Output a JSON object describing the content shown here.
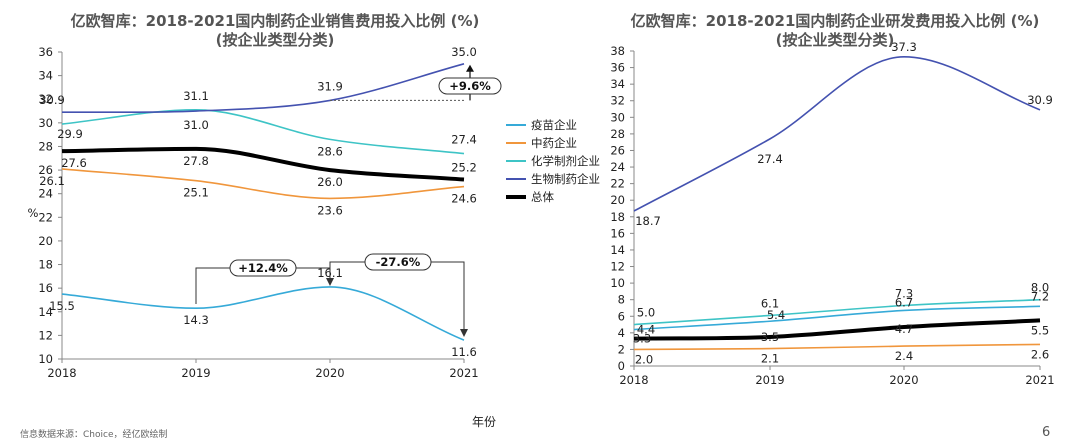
{
  "chart_data": [
    {
      "type": "line",
      "title": "亿欧智库：2018-2021国内制药企业销售费用投入比例 (%)",
      "subtitle": "(按企业类型分类)",
      "ylabel": "%",
      "xlabel": "年份",
      "categories": [
        "2018",
        "2019",
        "2020",
        "2021"
      ],
      "ylim": [
        10,
        36
      ],
      "yticks": [
        "10",
        "12",
        "14",
        "16",
        "18",
        "20",
        "22",
        "24",
        "26",
        "28",
        "30",
        "32",
        "34",
        "36"
      ],
      "series": [
        {
          "name": "疫苗企业",
          "color": "#36aad8",
          "values": [
            15.5,
            14.3,
            16.1,
            11.6
          ],
          "labels": [
            "15.5",
            "14.3",
            "16.1",
            "11.6"
          ]
        },
        {
          "name": "中药企业",
          "color": "#f0963c",
          "values": [
            26.1,
            25.1,
            23.6,
            24.6
          ],
          "labels": [
            "26.1",
            "25.1",
            "23.6",
            "24.6"
          ]
        },
        {
          "name": "化学制剂企业",
          "color": "#3ec4c6",
          "values": [
            29.9,
            31.1,
            28.6,
            27.4
          ],
          "labels": [
            "29.9",
            "31.1",
            "28.6",
            "27.4"
          ]
        },
        {
          "name": "生物制药企业",
          "color": "#4452b0",
          "values": [
            30.9,
            31.0,
            31.9,
            35.0
          ],
          "labels": [
            "30.9",
            "31.0",
            "31.9",
            "35.0"
          ]
        },
        {
          "name": "总体",
          "color": "#000000",
          "values": [
            27.6,
            27.8,
            26.0,
            25.2
          ],
          "labels": [
            "27.6",
            "27.8",
            "26.0",
            "25.2"
          ]
        }
      ],
      "annotations": [
        "+12.4%",
        "-27.6%",
        "+9.6%"
      ]
    },
    {
      "type": "line",
      "title": "亿欧智库：2018-2021国内制药企业研发费用投入比例 (%)",
      "subtitle": "(按企业类型分类)",
      "categories": [
        "2018",
        "2019",
        "2020",
        "2021"
      ],
      "ylim": [
        0,
        38
      ],
      "yticks": [
        "0",
        "2",
        "4",
        "6",
        "8",
        "10",
        "12",
        "14",
        "16",
        "18",
        "20",
        "22",
        "24",
        "26",
        "28",
        "30",
        "32",
        "34",
        "36",
        "38"
      ],
      "series": [
        {
          "name": "疫苗企业",
          "color": "#36aad8",
          "values": [
            4.4,
            5.4,
            6.7,
            7.2
          ],
          "labels": [
            "4.4",
            "5.4",
            "6.7",
            "7.2"
          ]
        },
        {
          "name": "中药企业",
          "color": "#f0963c",
          "values": [
            2.0,
            2.1,
            2.4,
            2.6
          ],
          "labels": [
            "2.0",
            "2.1",
            "2.4",
            "2.6"
          ]
        },
        {
          "name": "化学制剂企业",
          "color": "#3ec4c6",
          "values": [
            5.0,
            6.1,
            7.3,
            8.0
          ],
          "labels": [
            "5.0",
            "6.1",
            "7.3",
            "8.0"
          ]
        },
        {
          "name": "生物制药企业",
          "color": "#4452b0",
          "values": [
            18.7,
            27.4,
            37.3,
            30.9
          ],
          "labels": [
            "18.7",
            "27.4",
            "37.3",
            "30.9"
          ]
        },
        {
          "name": "总体",
          "color": "#000000",
          "values": [
            3.3,
            3.5,
            4.7,
            5.5
          ],
          "labels": [
            "3.3",
            "3.5",
            "4.7",
            "5.5"
          ]
        }
      ]
    }
  ],
  "legend": [
    {
      "name": "疫苗企业",
      "color": "#36aad8"
    },
    {
      "name": "中药企业",
      "color": "#f0963c"
    },
    {
      "name": "化学制剂企业",
      "color": "#3ec4c6"
    },
    {
      "name": "生物制药企业",
      "color": "#4452b0"
    },
    {
      "name": "总体",
      "color": "#000000"
    }
  ],
  "footer": {
    "source": "信息数据来源：Choice，经亿欧绘制",
    "xlabel": "年份",
    "page_number": "6"
  }
}
